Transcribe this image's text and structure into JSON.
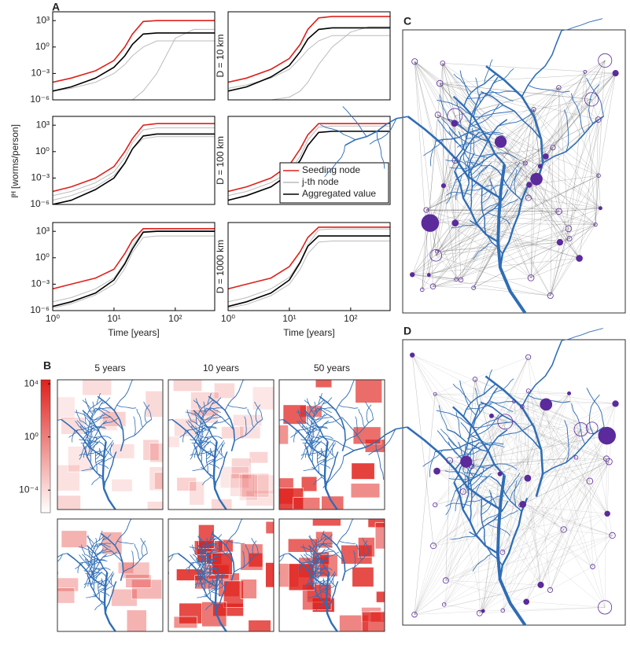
{
  "panel_labels": [
    "A",
    "B",
    "C",
    "D"
  ],
  "ylabel": "Iᴴ [worms/person]",
  "chart_data": [
    {
      "type": "line",
      "log_x": true,
      "log_y": true,
      "xlim": [
        1,
        440
      ],
      "ylim": [
        1e-06,
        10000.0
      ],
      "yticks": [
        {
          "value": 1e-06,
          "label": "10⁻⁶"
        },
        {
          "value": 0.001,
          "label": "10⁻³"
        },
        {
          "value": 1,
          "label": "10⁰"
        },
        {
          "value": 1000,
          "label": "10³"
        }
      ],
      "x": [
        1,
        2,
        5,
        10,
        15,
        20,
        30,
        50,
        100,
        200,
        440
      ],
      "series": [
        {
          "color": "#bbbbbb",
          "values": [
            1e-06,
            1e-06,
            1e-06,
            1e-06,
            1e-06,
            1e-06,
            1e-05,
            0.001,
            10,
            100,
            100
          ]
        },
        {
          "color": "#bbbbbb",
          "values": [
            1e-05,
            2e-05,
            0.0001,
            0.001,
            0.01,
            0.1,
            1,
            5,
            5,
            5,
            5
          ]
        },
        {
          "color": "#e0201b",
          "values": [
            0.0001,
            0.0003,
            0.002,
            0.03,
            1,
            30,
            800,
            1000,
            1000,
            1000,
            1000
          ]
        },
        {
          "color": "#000000",
          "values": [
            1e-05,
            3e-05,
            0.0003,
            0.005,
            0.1,
            2,
            30,
            40,
            40,
            40,
            40
          ]
        }
      ]
    },
    {
      "type": "line",
      "log_x": true,
      "log_y": true,
      "xlim": [
        1,
        440
      ],
      "ylim": [
        1e-06,
        10000.0
      ],
      "ylabel": "D = 10 km",
      "x": [
        1,
        2,
        5,
        10,
        15,
        20,
        30,
        50,
        100,
        200,
        440
      ],
      "series": [
        {
          "color": "#bbbbbb",
          "values": [
            1e-06,
            1e-06,
            1e-06,
            2e-06,
            1e-05,
            0.0001,
            0.01,
            1,
            50,
            200,
            200
          ]
        },
        {
          "color": "#bbbbbb",
          "values": [
            2e-05,
            5e-05,
            0.0003,
            0.003,
            0.05,
            0.5,
            5,
            20,
            20,
            20,
            20
          ]
        },
        {
          "color": "#e0201b",
          "values": [
            0.0001,
            0.0003,
            0.003,
            0.05,
            2,
            100,
            2000,
            3000,
            3000,
            3000,
            3000
          ]
        },
        {
          "color": "#000000",
          "values": [
            1e-05,
            3e-05,
            0.0004,
            0.008,
            0.3,
            8,
            100,
            150,
            150,
            150,
            150
          ]
        }
      ]
    },
    {
      "type": "line",
      "log_x": true,
      "log_y": true,
      "xlim": [
        1,
        440
      ],
      "ylim": [
        1e-06,
        10000.0
      ],
      "yticks": [
        {
          "value": 1e-06,
          "label": "10⁻⁶"
        },
        {
          "value": 0.001,
          "label": "10⁻³"
        },
        {
          "value": 1,
          "label": "10⁰"
        },
        {
          "value": 1000,
          "label": "10³"
        }
      ],
      "x": [
        1,
        2,
        5,
        10,
        15,
        20,
        30,
        50,
        100,
        200,
        440
      ],
      "series": [
        {
          "color": "#bbbbbb",
          "values": [
            1e-05,
            3e-05,
            0.0003,
            0.005,
            0.2,
            10,
            300,
            500,
            500,
            500,
            500
          ]
        },
        {
          "color": "#bbbbbb",
          "values": [
            3e-06,
            1e-05,
            0.0001,
            0.002,
            0.05,
            2,
            30,
            50,
            50,
            50,
            50
          ]
        },
        {
          "color": "#e0201b",
          "values": [
            3e-05,
            0.0001,
            0.001,
            0.02,
            1,
            30,
            1000,
            1500,
            1500,
            1500,
            1500
          ]
        },
        {
          "color": "#000000",
          "values": [
            1e-06,
            3e-06,
            5e-05,
            0.001,
            0.05,
            2,
            60,
            100,
            100,
            100,
            100
          ]
        }
      ]
    },
    {
      "type": "line",
      "log_x": true,
      "log_y": true,
      "xlim": [
        1,
        440
      ],
      "ylim": [
        1e-06,
        10000.0
      ],
      "ylabel": "D = 100 km",
      "legend": "lower right",
      "x": [
        1,
        2,
        5,
        10,
        15,
        20,
        30,
        50,
        100,
        200,
        440
      ],
      "series": [
        {
          "name": "Seeding node",
          "color": "#e0201b",
          "values": [
            3e-05,
            0.0001,
            0.001,
            0.03,
            2,
            80,
            1500,
            1500,
            1500,
            1500,
            1500
          ]
        },
        {
          "name": "j-th node",
          "color": "#bbbbbb",
          "values": [
            1e-05,
            3e-05,
            0.0003,
            0.005,
            0.3,
            20,
            600,
            800,
            800,
            800,
            800
          ]
        },
        {
          "name": "Aggregated value",
          "color": "#000000",
          "values": [
            3e-06,
            1e-05,
            0.0001,
            0.003,
            0.1,
            5,
            150,
            200,
            200,
            200,
            200
          ]
        }
      ]
    },
    {
      "type": "line",
      "log_x": true,
      "log_y": true,
      "xlim": [
        1,
        440
      ],
      "ylim": [
        1e-06,
        10000.0
      ],
      "xlabel": "Time [years]",
      "xticks": [
        {
          "value": 1,
          "label": "10⁰"
        },
        {
          "value": 10,
          "label": "10¹"
        },
        {
          "value": 100,
          "label": "10²"
        }
      ],
      "yticks": [
        {
          "value": 1e-06,
          "label": "10⁻⁶"
        },
        {
          "value": 0.001,
          "label": "10⁻³"
        },
        {
          "value": 1,
          "label": "10⁰"
        },
        {
          "value": 1000,
          "label": "10³"
        }
      ],
      "x": [
        1,
        2,
        5,
        10,
        15,
        20,
        30,
        50,
        100,
        200,
        440
      ],
      "series": [
        {
          "color": "#bbbbbb",
          "values": [
            1e-05,
            3e-05,
            0.0003,
            0.005,
            0.3,
            20,
            1000,
            1200,
            1200,
            1200,
            1200
          ]
        },
        {
          "color": "#bbbbbb",
          "values": [
            2e-06,
            6e-06,
            6e-05,
            0.001,
            0.06,
            4,
            200,
            300,
            300,
            300,
            300
          ]
        },
        {
          "color": "#e0201b",
          "values": [
            0.0003,
            0.001,
            0.005,
            0.05,
            3,
            100,
            2000,
            2000,
            2000,
            2000,
            2000
          ]
        },
        {
          "color": "#000000",
          "values": [
            3e-06,
            1e-05,
            0.0001,
            0.003,
            0.2,
            10,
            800,
            1000,
            1000,
            1000,
            1000
          ]
        }
      ]
    },
    {
      "type": "line",
      "log_x": true,
      "log_y": true,
      "xlim": [
        1,
        440
      ],
      "ylim": [
        1e-06,
        10000.0
      ],
      "ylabel": "D = 1000 km",
      "xlabel": "Time [years]",
      "xticks": [
        {
          "value": 1,
          "label": "10⁰"
        },
        {
          "value": 10,
          "label": "10¹"
        },
        {
          "value": 100,
          "label": "10²"
        }
      ],
      "x": [
        1,
        2,
        5,
        10,
        15,
        20,
        30,
        50,
        100,
        200,
        440
      ],
      "series": [
        {
          "color": "#bbbbbb",
          "values": [
            1e-05,
            3e-05,
            0.0003,
            0.006,
            0.4,
            30,
            1500,
            1800,
            1800,
            1800,
            1800
          ]
        },
        {
          "color": "#bbbbbb",
          "values": [
            2e-06,
            5e-06,
            5e-05,
            0.001,
            0.05,
            3,
            60,
            80,
            80,
            80,
            80
          ]
        },
        {
          "color": "#e0201b",
          "values": [
            0.0003,
            0.001,
            0.005,
            0.1,
            5,
            200,
            3000,
            3000,
            3000,
            3000,
            3000
          ]
        },
        {
          "color": "#000000",
          "values": [
            3e-06,
            1e-05,
            0.0001,
            0.003,
            0.3,
            20,
            300,
            300,
            300,
            300,
            300
          ]
        }
      ]
    }
  ],
  "maps": {
    "titles": [
      "5 years",
      "10 years",
      "50 years"
    ],
    "colorbar": {
      "log": true,
      "lim": [
        2e-06,
        20000
      ],
      "color": "#e0201b",
      "ticks": [
        {
          "value": 10000,
          "label": "10⁴"
        },
        {
          "value": 1,
          "label": "10⁰"
        },
        {
          "value": 0.0001,
          "label": "10⁻⁴"
        }
      ]
    }
  }
}
